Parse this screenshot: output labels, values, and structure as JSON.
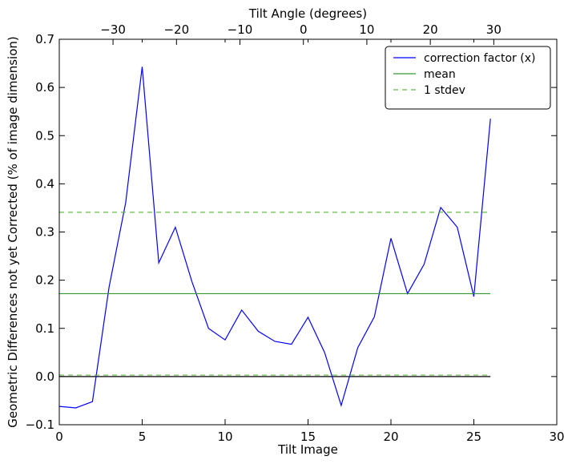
{
  "chart_data": {
    "type": "line",
    "xlabel": "Tilt Image",
    "ylabel": "Geometric Differences not yet Corrected (% of image dimension)",
    "top_xlabel": "Tilt Angle (degrees)",
    "xlim": [
      0,
      30
    ],
    "ylim": [
      -0.1,
      0.7
    ],
    "top_xlim": [
      -38.47,
      39.93
    ],
    "x_ticks": [
      0,
      5,
      10,
      15,
      20,
      25,
      30
    ],
    "x_tick_labels": [
      "0",
      "5",
      "10",
      "15",
      "20",
      "25",
      "30"
    ],
    "y_ticks": [
      -0.1,
      0.0,
      0.1,
      0.2,
      0.3,
      0.4,
      0.5,
      0.6,
      0.7
    ],
    "y_tick_labels": [
      "−0.1",
      "0.0",
      "0.1",
      "0.2",
      "0.3",
      "0.4",
      "0.5",
      "0.6",
      "0.7"
    ],
    "top_ticks": [
      -30,
      -20,
      -10,
      0,
      10,
      20,
      30
    ],
    "top_tick_labels": [
      "−30",
      "−20",
      "−10",
      "0",
      "10",
      "20",
      "30"
    ],
    "grid": false,
    "legend_position": "top-right",
    "series": [
      {
        "name": "correction factor (x)",
        "color": "#0000ff",
        "style": "solid",
        "x": [
          0,
          1,
          2,
          3,
          4,
          5,
          6,
          7,
          8,
          9,
          10,
          11,
          12,
          13,
          14,
          15,
          16,
          17,
          18,
          19,
          20,
          21,
          22,
          23,
          24,
          25,
          26
        ],
        "y": [
          -0.062,
          -0.065,
          -0.052,
          0.185,
          0.36,
          0.643,
          0.236,
          0.31,
          0.197,
          0.1,
          0.076,
          0.138,
          0.094,
          0.073,
          0.067,
          0.123,
          0.05,
          -0.06,
          0.06,
          0.124,
          0.287,
          0.172,
          0.233,
          0.351,
          0.31,
          0.166,
          0.535
        ]
      },
      {
        "name": "mean",
        "color": "#339933",
        "style": "solid",
        "x": [
          0,
          26
        ],
        "y": [
          0.172,
          0.172
        ]
      },
      {
        "name": "1 stdev",
        "color": "#66bb44",
        "style": "dashed",
        "x": [
          0,
          26
        ],
        "y": [
          0.341,
          0.341
        ]
      },
      {
        "name": "",
        "color": "#66bb44",
        "style": "dashed",
        "x": [
          0,
          26
        ],
        "y": [
          0.003,
          0.003
        ]
      }
    ],
    "reference_lines": [
      {
        "y": 0.0,
        "x_range": [
          0,
          26
        ],
        "color": "#000000"
      }
    ]
  }
}
